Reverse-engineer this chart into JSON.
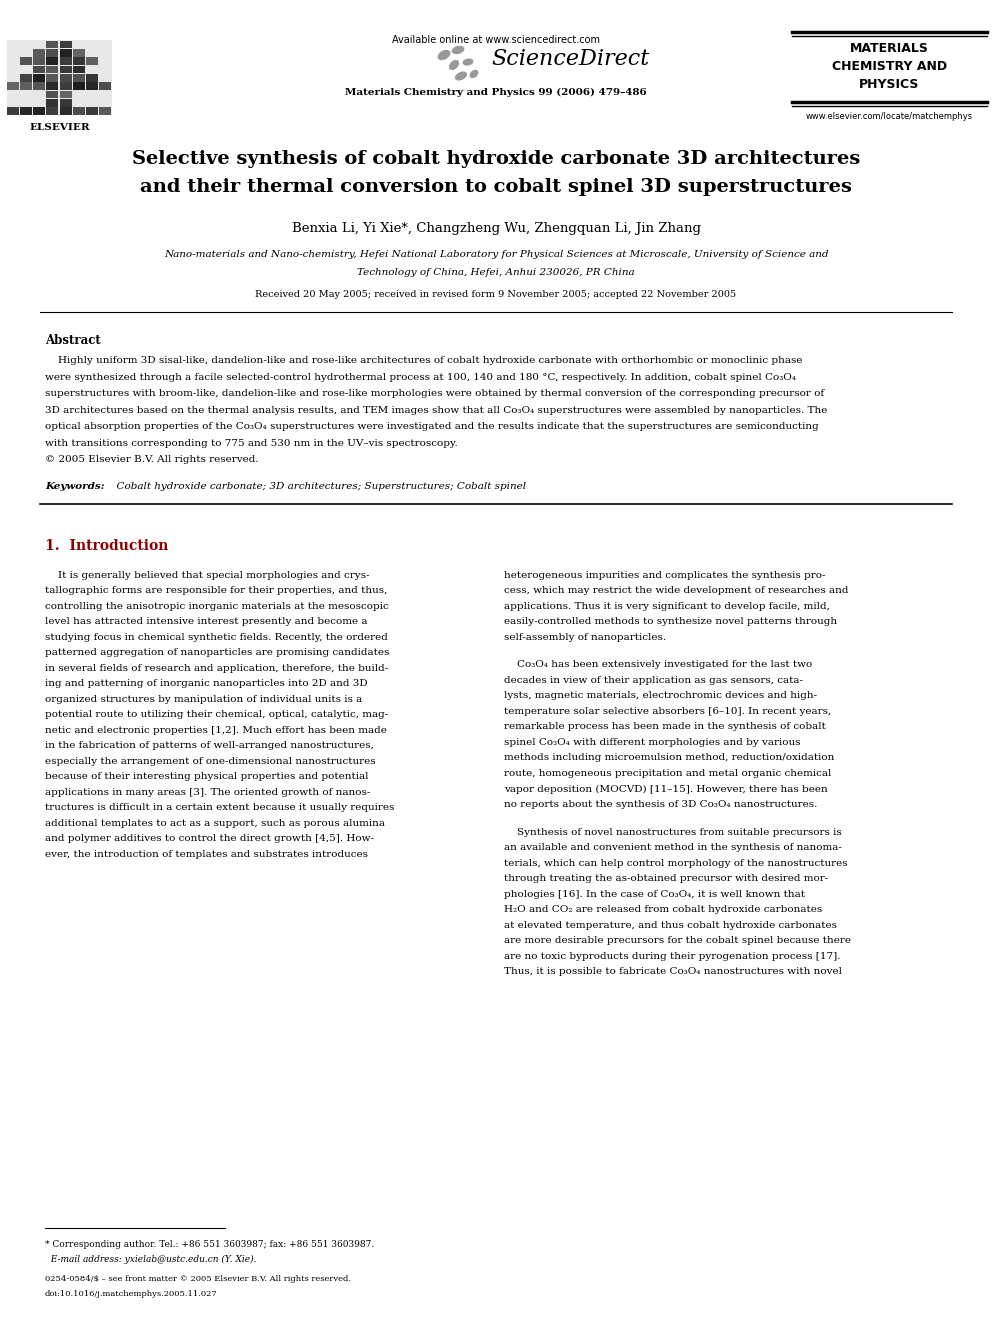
{
  "background_color": "#ffffff",
  "page_width": 9.92,
  "page_height": 13.23,
  "header": {
    "available_online_text": "Available online at www.sciencedirect.com",
    "sciencedirect_text": "ScienceDirect",
    "journal_name": "Materials Chemistry and Physics 99 (2006) 479–486",
    "journal_sidebar": "MATERIALS\nCHEMISTRY AND\nPHYSICS",
    "elsevier_text": "ELSEVIER",
    "website": "www.elsevier.com/locate/matchemphys"
  },
  "title_line1": "Selective synthesis of cobalt hydroxide carbonate 3D architectures",
  "title_line2": "and their thermal conversion to cobalt spinel 3D superstructures",
  "authors": "Benxia Li, Yi Xie*, Changzheng Wu, Zhengquan Li, Jin Zhang",
  "affiliation_line1": "Nano-materials and Nano-chemistry, Hefei National Laboratory for Physical Sciences at Microscale, University of Science and",
  "affiliation_line2": "Technology of China, Hefei, Anhui 230026, PR China",
  "received": "Received 20 May 2005; received in revised form 9 November 2005; accepted 22 November 2005",
  "abstract_label": "Abstract",
  "abstract_lines": [
    "    Highly uniform 3D sisal-like, dandelion-like and rose-like architectures of cobalt hydroxide carbonate with orthorhombic or monoclinic phase",
    "were synthesized through a facile selected-control hydrothermal process at 100, 140 and 180 °C, respectively. In addition, cobalt spinel Co₃O₄",
    "superstructures with broom-like, dandelion-like and rose-like morphologies were obtained by thermal conversion of the corresponding precursor of",
    "3D architectures based on the thermal analysis results, and TEM images show that all Co₃O₄ superstructures were assembled by nanoparticles. The",
    "optical absorption properties of the Co₃O₄ superstructures were investigated and the results indicate that the superstructures are semiconducting",
    "with transitions corresponding to 775 and 530 nm in the UV–vis spectroscopy.",
    "© 2005 Elsevier B.V. All rights reserved."
  ],
  "keywords_label": "Keywords:",
  "keywords_text": "  Cobalt hydroxide carbonate; 3D architectures; Superstructures; Cobalt spinel",
  "section1_heading": "1.  Introduction",
  "col1_lines": [
    "    It is generally believed that special morphologies and crys-",
    "tallographic forms are responsible for their properties, and thus,",
    "controlling the anisotropic inorganic materials at the mesoscopic",
    "level has attracted intensive interest presently and become a",
    "studying focus in chemical synthetic fields. Recently, the ordered",
    "patterned aggregation of nanoparticles are promising candidates",
    "in several fields of research and application, therefore, the build-",
    "ing and patterning of inorganic nanoparticles into 2D and 3D",
    "organized structures by manipulation of individual units is a",
    "potential route to utilizing their chemical, optical, catalytic, mag-",
    "netic and electronic properties [1,2]. Much effort has been made",
    "in the fabrication of patterns of well-arranged nanostructures,",
    "especially the arrangement of one-dimensional nanostructures",
    "because of their interesting physical properties and potential",
    "applications in many areas [3]. The oriented growth of nanos-",
    "tructures is difficult in a certain extent because it usually requires",
    "additional templates to act as a support, such as porous alumina",
    "and polymer additives to control the direct growth [4,5]. How-",
    "ever, the introduction of templates and substrates introduces"
  ],
  "col2_part1": [
    "heterogeneous impurities and complicates the synthesis pro-",
    "cess, which may restrict the wide development of researches and",
    "applications. Thus it is very significant to develop facile, mild,",
    "easily-controlled methods to synthesize novel patterns through",
    "self-assembly of nanoparticles."
  ],
  "col2_part2": [
    "    Co₃O₄ has been extensively investigated for the last two",
    "decades in view of their application as gas sensors, cata-",
    "lysts, magnetic materials, electrochromic devices and high-",
    "temperature solar selective absorbers [6–10]. In recent years,",
    "remarkable process has been made in the synthesis of cobalt",
    "spinel Co₃O₄ with different morphologies and by various",
    "methods including microemulsion method, reduction/oxidation",
    "route, homogeneous precipitation and metal organic chemical",
    "vapor deposition (MOCVD) [11–15]. However, there has been",
    "no reports about the synthesis of 3D Co₃O₄ nanostructures."
  ],
  "col2_part3": [
    "    Synthesis of novel nanostructures from suitable precursors is",
    "an available and convenient method in the synthesis of nanoma-",
    "terials, which can help control morphology of the nanostructures",
    "through treating the as-obtained precursor with desired mor-",
    "phologies [16]. In the case of Co₃O₄, it is well known that",
    "H₂O and CO₂ are released from cobalt hydroxide carbonates",
    "at elevated temperature, and thus cobalt hydroxide carbonates",
    "are more desirable precursors for the cobalt spinel because there",
    "are no toxic byproducts during their pyrogenation process [17].",
    "Thus, it is possible to fabricate Co₃O₄ nanostructures with novel"
  ],
  "footnote_line": "* Corresponding author. Tel.: +86 551 3603987; fax: +86 551 3603987.",
  "footnote_email": "  E-mail address: yxielab@ustc.edu.cn (Y. Xie).",
  "footer_issn": "0254-0584/$ – see front matter © 2005 Elsevier B.V. All rights reserved.",
  "footer_doi": "doi:10.1016/j.matchemphys.2005.11.027"
}
